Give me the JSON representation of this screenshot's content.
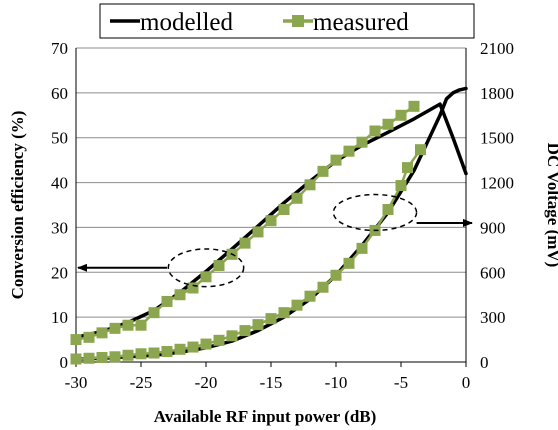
{
  "chart_data": {
    "type": "line",
    "xlabel": "Available RF input power (dB)",
    "ylabel_left": "Conversion efficiency (%)",
    "ylabel_right": "DC Voltage (mV)",
    "xlim": [
      -30,
      0
    ],
    "ylim_left": [
      0,
      70
    ],
    "ylim_right": [
      0,
      2100
    ],
    "x_ticks": [
      "-30",
      "-25",
      "-20",
      "-15",
      "-10",
      "-5",
      "0"
    ],
    "y_left_ticks": [
      "0",
      "10",
      "20",
      "30",
      "40",
      "50",
      "60",
      "70"
    ],
    "y_right_ticks": [
      "0",
      "300",
      "600",
      "900",
      "1200",
      "1500",
      "1800",
      "2100"
    ],
    "legend": {
      "position": "top",
      "entries": [
        "modelled",
        "measured"
      ]
    },
    "colors": {
      "modelled": "#000000",
      "measured": "#8BA64E"
    },
    "series": [
      {
        "name": "modelled",
        "axis": "left",
        "x": [
          -30,
          -28,
          -26,
          -24,
          -22,
          -20,
          -18,
          -16,
          -14,
          -12,
          -10,
          -8,
          -6,
          -4,
          -2,
          -1,
          0
        ],
        "y": [
          5.5,
          6.8,
          8.8,
          11.5,
          15.5,
          20.2,
          25.2,
          30.3,
          35.5,
          40.3,
          44.8,
          48.3,
          51.2,
          54.2,
          57.5,
          50.0,
          42.0
        ]
      },
      {
        "name": "measured",
        "axis": "left",
        "x": [
          -30,
          -29,
          -28,
          -27,
          -26,
          -25,
          -24,
          -23,
          -22,
          -21,
          -20,
          -19,
          -18,
          -17,
          -16,
          -15,
          -14,
          -13,
          -12,
          -11,
          -10,
          -9,
          -8,
          -7,
          -6,
          -5,
          -4
        ],
        "y": [
          5,
          5.5,
          6.5,
          7.5,
          8.2,
          8.2,
          11,
          13.5,
          15,
          16.5,
          19,
          21.5,
          24,
          26.5,
          29,
          31.5,
          34,
          36.5,
          39.5,
          42.5,
          45,
          47,
          49,
          51.5,
          53,
          55,
          57
        ]
      },
      {
        "name": "modelled",
        "axis": "right",
        "x": [
          -30,
          -28,
          -26,
          -24,
          -22,
          -20,
          -18,
          -16,
          -14,
          -12,
          -10,
          -8,
          -6,
          -4,
          -2,
          -1.5,
          -1,
          -0.5,
          0
        ],
        "y": [
          20,
          25,
          35,
          45,
          65,
          95,
          140,
          210,
          300,
          420,
          580,
          780,
          1000,
          1280,
          1650,
          1760,
          1800,
          1820,
          1830
        ]
      },
      {
        "name": "measured",
        "axis": "right",
        "x": [
          -30,
          -29,
          -28,
          -27,
          -26,
          -25,
          -24,
          -23,
          -22,
          -21,
          -20,
          -19,
          -18,
          -17,
          -16,
          -15,
          -14,
          -13,
          -12,
          -11,
          -10,
          -9,
          -8,
          -7,
          -6,
          -5,
          -4.5,
          -3.5
        ],
        "y": [
          20,
          25,
          30,
          35,
          45,
          55,
          60,
          70,
          85,
          100,
          120,
          145,
          175,
          210,
          250,
          290,
          330,
          380,
          440,
          500,
          580,
          660,
          760,
          880,
          1020,
          1180,
          1300,
          1420
        ]
      }
    ],
    "annotations": [
      {
        "type": "ellipse",
        "x": -20,
        "y": 21,
        "axis": "left",
        "rx_data": 2.9,
        "ry_data": 4.2
      },
      {
        "type": "ellipse",
        "x": -7,
        "y": 1000,
        "axis": "right",
        "rx_data": 3.2,
        "ry_data": 120
      },
      {
        "type": "arrow",
        "from": [
          -23,
          21
        ],
        "to": [
          -30,
          21
        ],
        "axis": "left"
      },
      {
        "type": "arrow",
        "from": [
          -3.8,
          930
        ],
        "to": [
          0,
          930
        ],
        "axis": "right"
      }
    ]
  }
}
